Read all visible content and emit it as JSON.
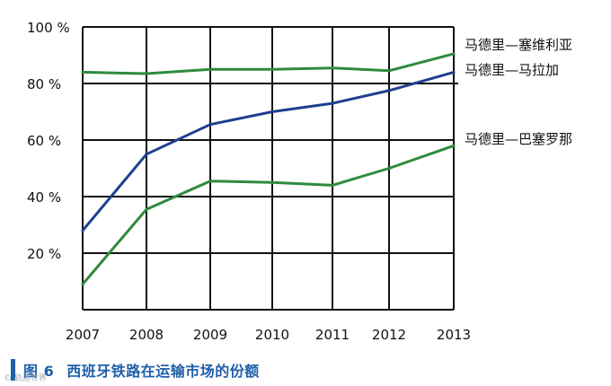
{
  "caption": {
    "figure_label": "图 6",
    "text": "西班牙铁路在运输市场的份额",
    "watermark": "© 轨道世界"
  },
  "chart_data": {
    "type": "line",
    "title": "",
    "xlabel": "",
    "ylabel": "",
    "x": [
      "2007",
      "2008",
      "2009",
      "2010",
      "2011",
      "2012",
      "2013"
    ],
    "xtick_labels": [
      "2007",
      "2008",
      "2009",
      "2010",
      "2011",
      "2012",
      "2013"
    ],
    "ytick_values": [
      20,
      40,
      60,
      80,
      100
    ],
    "ytick_labels": [
      "20 %",
      "40 %",
      "60 %",
      "80 %",
      "100 %"
    ],
    "ylim": [
      0,
      100
    ],
    "grid": true,
    "series": [
      {
        "name": "马德里—塞维利亚",
        "color": "#2e8b3c",
        "values": [
          84,
          83.5,
          85,
          85,
          85.5,
          84.5,
          90.5
        ]
      },
      {
        "name": "马德里—马拉加",
        "color": "#1f3f8f",
        "values": [
          28,
          55,
          65.5,
          70,
          73,
          77.5,
          84
        ]
      },
      {
        "name": "马德里—巴塞罗那",
        "color": "#2e8b3c",
        "values": [
          9,
          35.5,
          45.5,
          45,
          44,
          50,
          58
        ]
      }
    ]
  }
}
